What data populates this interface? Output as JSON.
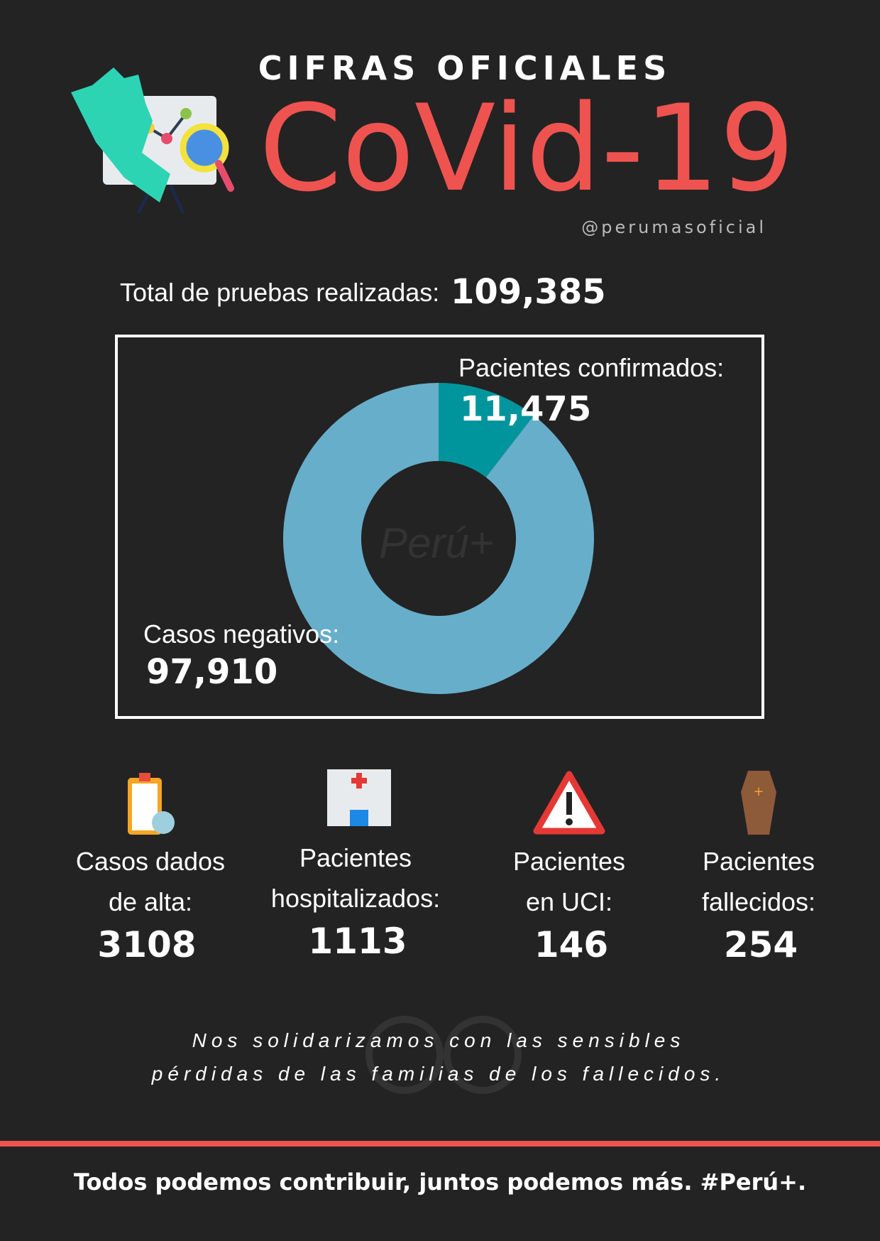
{
  "header": {
    "kicker": "CIFRAS OFICIALES",
    "title": "CoVid-19",
    "handle": "@perumasoficial"
  },
  "total": {
    "label": "Total de pruebas realizadas:",
    "value": "109,385"
  },
  "chart_data": {
    "type": "pie",
    "donut": true,
    "categories": [
      "Pacientes confirmados:",
      "Casos negativos:"
    ],
    "values": [
      11475,
      97910
    ],
    "value_labels": [
      "11,475",
      "97,910"
    ],
    "colors": [
      "#00959c",
      "#67aecb"
    ],
    "watermark": "Perú+"
  },
  "stats": [
    {
      "label": [
        "Casos dados",
        "de alta:"
      ],
      "value": 3108
    },
    {
      "label": [
        "Pacientes",
        "hospitalizados:"
      ],
      "value": 1113
    },
    {
      "label": [
        "Pacientes",
        "en UCI:"
      ],
      "value": 146
    },
    {
      "label": [
        "Pacientes",
        "fallecidos:"
      ],
      "value": 254
    }
  ],
  "quote": [
    "Nos solidarizamos con las sensibles",
    "pérdidas de las familias de los fallecidos."
  ],
  "footer": "Todos podemos contribuir,  juntos podemos más. #Perú+."
}
